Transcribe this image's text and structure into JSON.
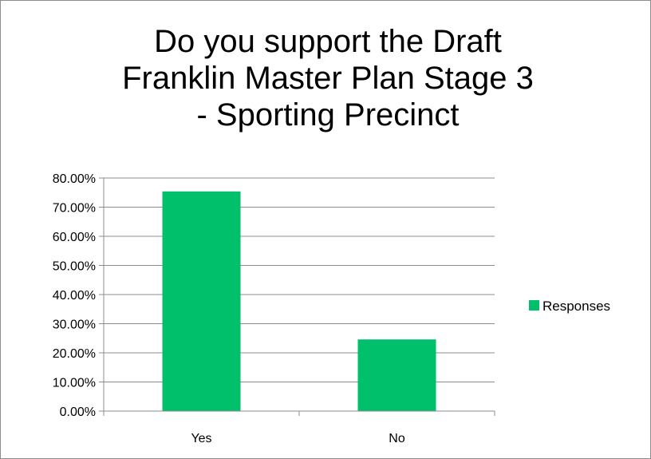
{
  "chart_data": {
    "type": "bar",
    "title_lines": [
      "Do you support the Draft",
      "Franklin Master Plan Stage 3",
      "- Sporting Precinct"
    ],
    "categories": [
      "Yes",
      "No"
    ],
    "series": [
      {
        "name": "Responses",
        "values": [
          75.4,
          24.6
        ],
        "color": "#00c06b"
      }
    ],
    "y_ticks": [
      "0.00%",
      "10.00%",
      "20.00%",
      "30.00%",
      "40.00%",
      "50.00%",
      "60.00%",
      "70.00%",
      "80.00%"
    ],
    "ylim": [
      0,
      80
    ],
    "grid": true,
    "legend_position": "right"
  }
}
